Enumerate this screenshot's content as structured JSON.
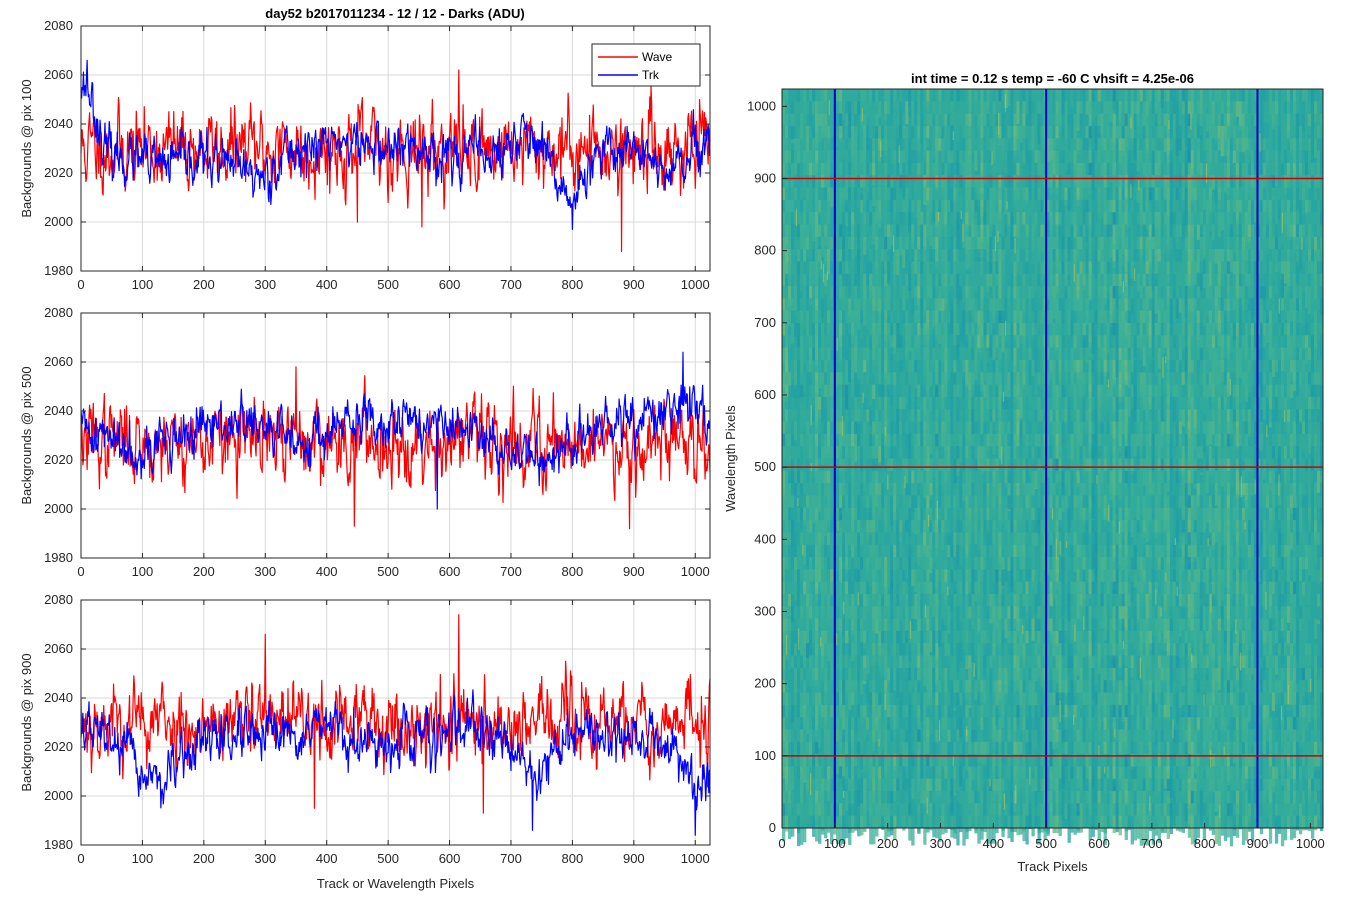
{
  "figure_title": "day52 b2017011234 - 12 / 12 - Darks (ADU)",
  "colors": {
    "wave": "#ff0000",
    "trk": "#0000ff",
    "heat_base": "#2aa6a0",
    "grid": "#d9d9d9"
  },
  "chart_data": [
    {
      "type": "line",
      "ylabel": "Backgrounds @ pix 100",
      "xlabel": "",
      "xlim": [
        0,
        1024
      ],
      "ylim": [
        1980,
        2080
      ],
      "xticks": [
        0,
        100,
        200,
        300,
        400,
        500,
        600,
        700,
        800,
        900,
        1000
      ],
      "yticks": [
        1980,
        2000,
        2020,
        2040,
        2060,
        2080
      ],
      "grid": true,
      "legend": {
        "position": "top-right",
        "entries": [
          "Wave",
          "Trk"
        ]
      },
      "series": [
        {
          "name": "Wave",
          "color": "#ff0000",
          "mean": 2030,
          "noise": 8,
          "seed": 11,
          "trend": [
            [
              0,
              0
            ],
            [
              1024,
              0
            ]
          ],
          "spikes": [
            [
              615,
              2062
            ],
            [
              880,
              1988
            ],
            [
              555,
              1998
            ],
            [
              450,
              2000
            ]
          ]
        },
        {
          "name": "Trk",
          "color": "#0000ff",
          "mean": 2028,
          "noise": 5,
          "seed": 23,
          "trend": [
            [
              0,
              30
            ],
            [
              15,
              25
            ],
            [
              40,
              0
            ],
            [
              120,
              -5
            ],
            [
              200,
              -2
            ],
            [
              300,
              -10
            ],
            [
              330,
              0
            ],
            [
              420,
              5
            ],
            [
              500,
              2
            ],
            [
              600,
              0
            ],
            [
              690,
              0
            ],
            [
              720,
              10
            ],
            [
              800,
              -20
            ],
            [
              850,
              0
            ],
            [
              900,
              5
            ],
            [
              950,
              -10
            ],
            [
              1000,
              0
            ],
            [
              1024,
              0
            ]
          ],
          "spikes": [
            [
              10,
              2066
            ],
            [
              800,
              1997
            ]
          ]
        }
      ]
    },
    {
      "type": "line",
      "ylabel": "Backgrounds @ pix 500",
      "xlabel": "",
      "xlim": [
        0,
        1024
      ],
      "ylim": [
        1980,
        2080
      ],
      "xticks": [
        0,
        100,
        200,
        300,
        400,
        500,
        600,
        700,
        800,
        900,
        1000
      ],
      "yticks": [
        1980,
        2000,
        2020,
        2040,
        2060,
        2080
      ],
      "grid": true,
      "series": [
        {
          "name": "Wave",
          "color": "#ff0000",
          "mean": 2028,
          "noise": 8,
          "seed": 37,
          "trend": [
            [
              0,
              0
            ],
            [
              1024,
              0
            ]
          ],
          "spikes": [
            [
              893,
              1992
            ],
            [
              445,
              1993
            ],
            [
              350,
              2058
            ]
          ]
        },
        {
          "name": "Trk",
          "color": "#0000ff",
          "mean": 2028,
          "noise": 5,
          "seed": 41,
          "trend": [
            [
              0,
              5
            ],
            [
              100,
              -3
            ],
            [
              250,
              8
            ],
            [
              350,
              0
            ],
            [
              500,
              10
            ],
            [
              600,
              5
            ],
            [
              750,
              -8
            ],
            [
              850,
              5
            ],
            [
              950,
              10
            ],
            [
              1000,
              18
            ],
            [
              1024,
              5
            ]
          ],
          "spikes": [
            [
              980,
              2064
            ],
            [
              580,
              2000
            ]
          ]
        }
      ]
    },
    {
      "type": "line",
      "ylabel": "Backgrounds @ pix 900",
      "xlabel": "Track or Wavelength Pixels",
      "xlim": [
        0,
        1024
      ],
      "ylim": [
        1980,
        2080
      ],
      "xticks": [
        0,
        100,
        200,
        300,
        400,
        500,
        600,
        700,
        800,
        900,
        1000
      ],
      "yticks": [
        1980,
        2000,
        2020,
        2040,
        2060,
        2080
      ],
      "grid": true,
      "series": [
        {
          "name": "Wave",
          "color": "#ff0000",
          "mean": 2030,
          "noise": 8,
          "seed": 53,
          "trend": [
            [
              0,
              0
            ],
            [
              1024,
              0
            ]
          ],
          "spikes": [
            [
              615,
              2074
            ],
            [
              300,
              2066
            ],
            [
              655,
              1993
            ],
            [
              380,
              1995
            ]
          ]
        },
        {
          "name": "Trk",
          "color": "#0000ff",
          "mean": 2024,
          "noise": 5,
          "seed": 67,
          "trend": [
            [
              0,
              4
            ],
            [
              50,
              0
            ],
            [
              100,
              -15
            ],
            [
              140,
              -18
            ],
            [
              200,
              0
            ],
            [
              300,
              -2
            ],
            [
              400,
              4
            ],
            [
              460,
              -5
            ],
            [
              520,
              0
            ],
            [
              600,
              2
            ],
            [
              690,
              0
            ],
            [
              740,
              -15
            ],
            [
              800,
              2
            ],
            [
              900,
              0
            ],
            [
              960,
              -2
            ],
            [
              1000,
              -20
            ],
            [
              1024,
              -18
            ]
          ],
          "spikes": [
            [
              1000,
              1984
            ],
            [
              735,
              1986
            ]
          ]
        }
      ]
    },
    {
      "type": "heatmap",
      "title": "int time = 0.12 s    temp = -60 C    vhsift = 4.25e-06",
      "xlabel": "Track Pixels",
      "ylabel": "Wavelength Pixels",
      "xlim": [
        0,
        1024
      ],
      "ylim": [
        0,
        1024
      ],
      "xticks": [
        0,
        100,
        200,
        300,
        400,
        500,
        600,
        700,
        800,
        900,
        1000
      ],
      "yticks": [
        0,
        100,
        200,
        300,
        400,
        500,
        600,
        700,
        800,
        900,
        1000
      ],
      "vertical_lines": [
        100,
        500,
        900
      ],
      "vertical_line_color": "#0000cc",
      "horizontal_lines": [
        100,
        500,
        900
      ],
      "horizontal_line_color": "#cc0000"
    }
  ]
}
